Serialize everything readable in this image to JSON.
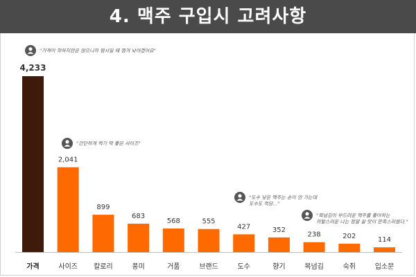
{
  "header": {
    "title": "4. 맥주 구입시 고려사항"
  },
  "colors": {
    "header_bg": "#4a4a4a",
    "first_bar": "#3e1a0a",
    "bar": "#ff6a00"
  },
  "chart_data": {
    "type": "bar",
    "title": "",
    "xlabel": "",
    "ylabel": "",
    "ylim": [
      0,
      4233
    ],
    "categories": [
      "가격",
      "사이즈",
      "칼로리",
      "풍미",
      "거품",
      "브랜드",
      "도수",
      "향기",
      "목넘김",
      "숙취",
      "입소문"
    ],
    "values": [
      4233,
      2041,
      899,
      683,
      568,
      555,
      427,
      352,
      238,
      202,
      114
    ],
    "value_labels": [
      "4,233",
      "2,041",
      "899",
      "683",
      "568",
      "555",
      "427",
      "352",
      "238",
      "202",
      "114"
    ],
    "annotations": [
      {
        "category": "가격",
        "lines": [
          "\"가격이 착하지만은 않으니까 평시일 때 쟁겨 놔야겠어요\""
        ],
        "icon": "user-icon"
      },
      {
        "category": "사이즈",
        "lines": [
          "\"간단하게 먹기 딱 좋은 사이즈\""
        ],
        "icon": "user-icon"
      },
      {
        "category": "도수",
        "lines": [
          "\"도수 낮은 맥주는 손이 안 가는데",
          "도수도 적당...\""
        ],
        "icon": "user-icon"
      },
      {
        "category": "목넘김",
        "lines": [
          "\"목넘김이 부드러운 맥주를 좋아하는",
          "까탈스러운 나는 정말 살 맛이 만족스러웠다.\""
        ],
        "icon": "user-icon"
      }
    ]
  }
}
